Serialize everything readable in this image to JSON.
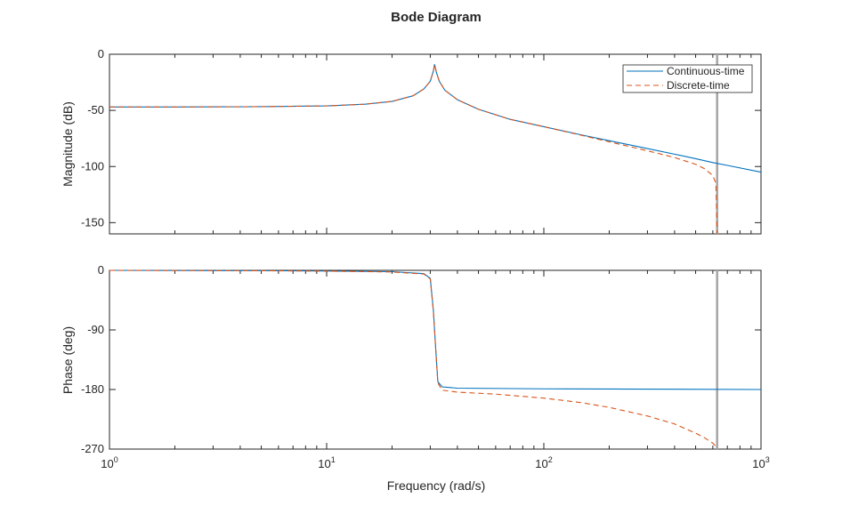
{
  "chart_data": {
    "type": "line",
    "title": "Bode Diagram",
    "xlabel": "Frequency (rad/s)",
    "x_scale": "log",
    "xlim": [
      1,
      1000
    ],
    "x_ticks": [
      {
        "base": "10",
        "exp": "0"
      },
      {
        "base": "10",
        "exp": "1"
      },
      {
        "base": "10",
        "exp": "2"
      },
      {
        "base": "10",
        "exp": "3"
      }
    ],
    "nyquist_marker": {
      "x": 628,
      "color": "#a6a6a6"
    },
    "colors": {
      "continuous": "#0072bd",
      "discrete": "#d95319"
    },
    "legend": {
      "placement": "top-right",
      "entries": [
        "Continuous-time",
        "Discrete-time"
      ]
    },
    "magnitude": {
      "ylabel": "Magnitude (dB)",
      "ylim": [
        -160,
        0
      ],
      "yticks": [
        "0",
        "-50",
        "-100",
        "-150"
      ],
      "series": [
        {
          "name": "Continuous-time",
          "style": "solid",
          "x": [
            1,
            2,
            5,
            10,
            15,
            20,
            25,
            28,
            30,
            31,
            31.4,
            32,
            33,
            35,
            40,
            50,
            70,
            100,
            150,
            200,
            300,
            400,
            500,
            600,
            700,
            1000
          ],
          "y": [
            -47,
            -47,
            -46.7,
            -46,
            -44.5,
            -42,
            -37,
            -31,
            -24,
            -15,
            -9,
            -16,
            -24,
            -32,
            -40.5,
            -49,
            -58,
            -64.5,
            -72,
            -77,
            -84,
            -89,
            -93,
            -96.5,
            -99,
            -105
          ]
        },
        {
          "name": "Discrete-time",
          "style": "dashed",
          "x": [
            1,
            2,
            5,
            10,
            15,
            20,
            25,
            28,
            30,
            31,
            31.4,
            32,
            33,
            35,
            40,
            50,
            70,
            100,
            150,
            200,
            300,
            400,
            500,
            550,
            600,
            620,
            628
          ],
          "y": [
            -47,
            -47,
            -46.7,
            -46,
            -44.5,
            -42,
            -37,
            -31,
            -24,
            -15,
            -9,
            -16,
            -24,
            -32,
            -40.5,
            -49,
            -58,
            -64.5,
            -72.3,
            -78,
            -86,
            -92,
            -98,
            -102,
            -108,
            -115,
            -160
          ]
        }
      ]
    },
    "phase": {
      "ylabel": "Phase (deg)",
      "ylim": [
        -270,
        0
      ],
      "yticks": [
        "0",
        "-90",
        "-180",
        "-270"
      ],
      "series": [
        {
          "name": "Continuous-time",
          "style": "solid",
          "x": [
            1,
            5,
            10,
            20,
            28,
            30,
            31,
            31.4,
            31.8,
            32.5,
            34,
            40,
            100,
            1000
          ],
          "y": [
            0,
            -0.5,
            -1,
            -2,
            -5,
            -12,
            -60,
            -90,
            -120,
            -168,
            -176,
            -178,
            -179,
            -180
          ]
        },
        {
          "name": "Discrete-time",
          "style": "dashed",
          "x": [
            1,
            5,
            10,
            20,
            28,
            30,
            31,
            31.4,
            31.8,
            32.5,
            34,
            40,
            60,
            100,
            150,
            200,
            300,
            400,
            500,
            550,
            600,
            620,
            628
          ],
          "y": [
            0,
            -0.6,
            -1.2,
            -2.5,
            -5.5,
            -13,
            -62,
            -91,
            -121,
            -170,
            -181,
            -184,
            -187,
            -193,
            -200,
            -207,
            -220,
            -232,
            -246,
            -253,
            -261,
            -266,
            -270
          ]
        }
      ]
    }
  }
}
